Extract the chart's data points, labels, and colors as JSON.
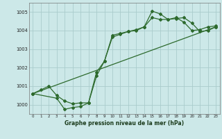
{
  "xlabel": "Graphe pression niveau de la mer (hPa)",
  "ylim": [
    999.5,
    1005.5
  ],
  "xlim": [
    -0.5,
    23.5
  ],
  "yticks": [
    1000,
    1001,
    1002,
    1003,
    1004,
    1005
  ],
  "xticks": [
    0,
    1,
    2,
    3,
    4,
    5,
    6,
    7,
    8,
    9,
    10,
    11,
    12,
    13,
    14,
    15,
    16,
    17,
    18,
    19,
    20,
    21,
    22,
    23
  ],
  "bg_color": "#cce8e8",
  "line_color": "#2d6a2d",
  "grid_color": "#aacccc",
  "line1": [
    [
      0,
      1000.6
    ],
    [
      1,
      1000.8
    ],
    [
      2,
      1001.0
    ],
    [
      3,
      1000.5
    ],
    [
      4,
      1000.2
    ],
    [
      5,
      1000.05
    ],
    [
      6,
      1000.1
    ],
    [
      7,
      1000.1
    ],
    [
      8,
      1001.55
    ],
    [
      9,
      1002.35
    ],
    [
      10,
      1003.75
    ],
    [
      11,
      1003.85
    ],
    [
      12,
      1003.95
    ],
    [
      13,
      1004.0
    ],
    [
      14,
      1004.2
    ],
    [
      15,
      1004.7
    ],
    [
      16,
      1004.6
    ],
    [
      17,
      1004.6
    ],
    [
      18,
      1004.7
    ],
    [
      19,
      1004.45
    ],
    [
      20,
      1004.0
    ],
    [
      21,
      1004.05
    ],
    [
      22,
      1004.2
    ],
    [
      23,
      1004.25
    ]
  ],
  "line2": [
    [
      0,
      1000.6
    ],
    [
      3,
      1000.35
    ],
    [
      4,
      999.75
    ],
    [
      5,
      999.85
    ],
    [
      6,
      999.9
    ],
    [
      7,
      1000.1
    ],
    [
      8,
      1001.75
    ],
    [
      9,
      1002.35
    ],
    [
      10,
      1003.65
    ],
    [
      11,
      1003.8
    ],
    [
      12,
      1003.95
    ],
    [
      13,
      1004.05
    ],
    [
      14,
      1004.2
    ],
    [
      15,
      1005.05
    ],
    [
      16,
      1004.9
    ],
    [
      17,
      1004.6
    ],
    [
      18,
      1004.65
    ],
    [
      19,
      1004.7
    ],
    [
      20,
      1004.4
    ],
    [
      21,
      1003.95
    ],
    [
      22,
      1004.0
    ],
    [
      23,
      1004.2
    ]
  ],
  "line3": [
    [
      0,
      1000.6
    ],
    [
      23,
      1004.2
    ]
  ]
}
